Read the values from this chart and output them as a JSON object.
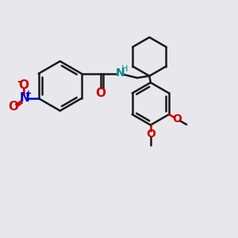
{
  "bg_color": "#e8e8ec",
  "bond_color": "#1a1a1a",
  "nitrogen_color": "#0000cc",
  "oxygen_color": "#cc0000",
  "nh_color": "#008888",
  "figsize": [
    3.0,
    3.0
  ],
  "dpi": 100,
  "xlim": [
    0,
    10
  ],
  "ylim": [
    0,
    10
  ]
}
